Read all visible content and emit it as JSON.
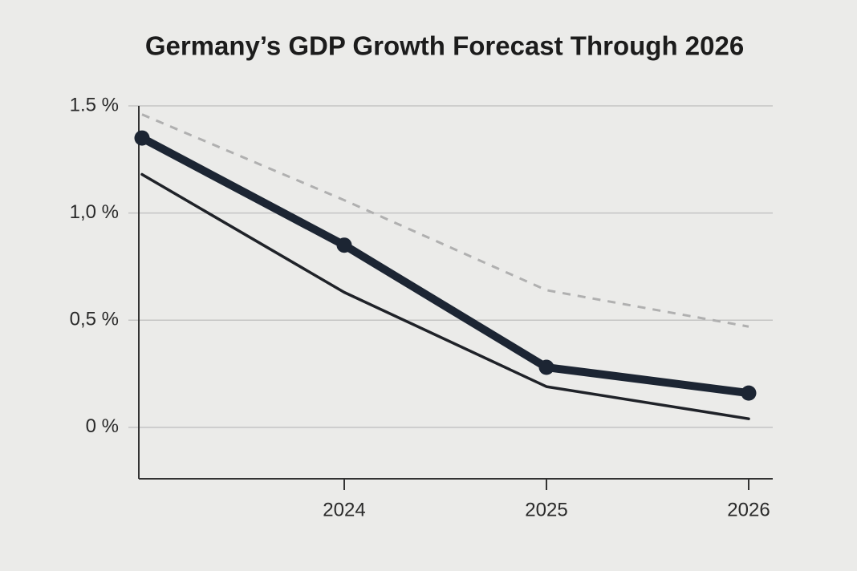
{
  "chart_data": {
    "type": "line",
    "title": "Germany’s GDP Growth Forecast Through 2026",
    "categories": [
      null,
      "2024",
      "2025",
      "2026"
    ],
    "series": [
      {
        "color": "#1c2533",
        "line_style": "solid",
        "line_weight": "bold",
        "markers": true,
        "values": [
          1.35,
          0.85,
          0.28,
          0.16
        ]
      },
      {
        "color": "#1f2228",
        "line_style": "solid",
        "line_weight": "normal",
        "markers": false,
        "values": [
          1.18,
          0.63,
          0.19,
          0.04
        ]
      },
      {
        "color": "#b0b0b0",
        "line_style": "dashed",
        "line_weight": "normal",
        "markers": false,
        "values": [
          1.46,
          1.06,
          0.64,
          0.47
        ]
      }
    ],
    "ylim": [
      -0.24,
      1.5
    ],
    "yticks": [
      {
        "value": 0,
        "label": "0 %"
      },
      {
        "value": 0.5,
        "label": "0,5 %"
      },
      {
        "value": 1.0,
        "label": "1,0 %"
      },
      {
        "value": 1.5,
        "label": "1.5 %"
      }
    ],
    "grid": true
  }
}
